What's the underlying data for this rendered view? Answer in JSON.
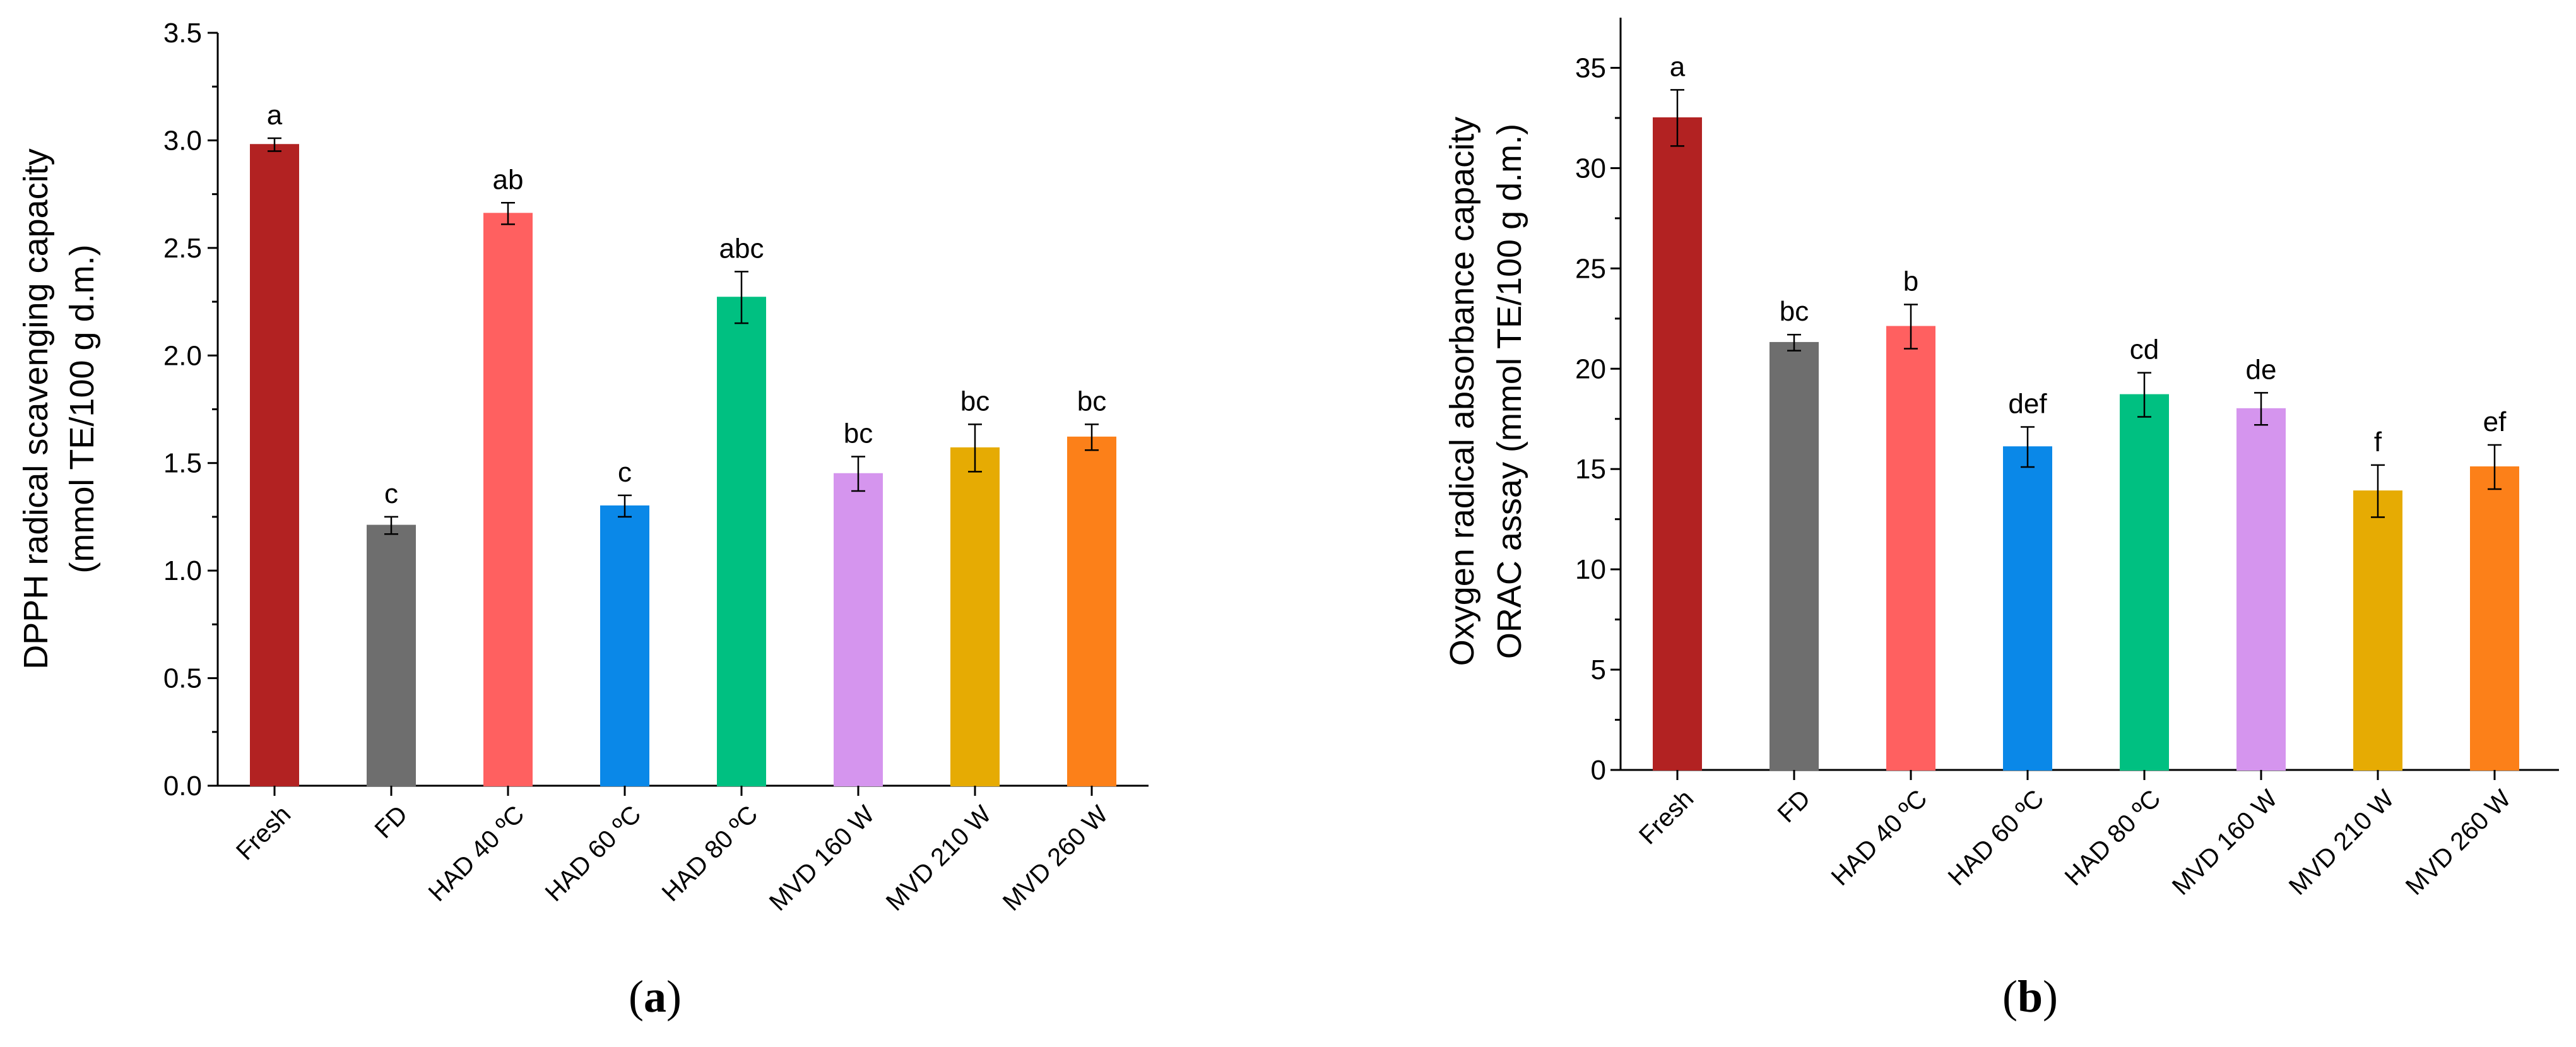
{
  "chart_data": [
    {
      "type": "bar",
      "panel": "a",
      "categories": [
        "Fresh",
        "FD",
        "HAD 40 ºC",
        "HAD 60 ºC",
        "HAD 80 ºC",
        "MVD 160 W",
        "MVD 210 W",
        "MVD 260 W"
      ],
      "values": [
        2.98,
        1.21,
        2.66,
        1.3,
        2.27,
        1.45,
        1.57,
        1.62
      ],
      "errors": [
        0.03,
        0.04,
        0.05,
        0.05,
        0.12,
        0.08,
        0.11,
        0.06
      ],
      "significance": [
        "a",
        "c",
        "ab",
        "c",
        "abc",
        "bc",
        "bc",
        "bc"
      ],
      "colors": [
        "#B22222",
        "#6E6E6E",
        "#FF6060",
        "#0A88E8",
        "#00C081",
        "#D595EE",
        "#E6AB03",
        "#FC8019"
      ],
      "ylabel_line1": "DPPH radical scavenging capacity",
      "ylabel_line2": "(mmol TE/100 g d.m.)",
      "ylim": [
        0,
        3.5
      ],
      "yticks": [
        "0.0",
        "0.5",
        "1.0",
        "1.5",
        "2.0",
        "2.5",
        "3.0",
        "3.5"
      ],
      "ytick_values": [
        0,
        0.5,
        1.0,
        1.5,
        2.0,
        2.5,
        3.0,
        3.5
      ],
      "panel_label": "a"
    },
    {
      "type": "bar",
      "panel": "b",
      "categories": [
        "Fresh",
        "FD",
        "HAD 40 ºC",
        "HAD 60 ºC",
        "HAD 80 ºC",
        "MVD 160 W",
        "MVD 210 W",
        "MVD 260 W"
      ],
      "values": [
        32.5,
        21.3,
        22.1,
        16.1,
        18.7,
        18.0,
        13.9,
        15.1
      ],
      "errors": [
        1.4,
        0.4,
        1.1,
        1.0,
        1.1,
        0.8,
        1.3,
        1.1
      ],
      "significance": [
        "a",
        "bc",
        "b",
        "def",
        "cd",
        "de",
        "f",
        "ef"
      ],
      "colors": [
        "#B22222",
        "#6E6E6E",
        "#FF6060",
        "#0A88E8",
        "#00C081",
        "#D595EE",
        "#E6AB03",
        "#FC8019"
      ],
      "ylabel_line1": "Oxygen radical absorbance capacity",
      "ylabel_line2": "ORAC assay (mmol TE/100 g d.m.)",
      "ylim": [
        0,
        37.5
      ],
      "yticks": [
        "0",
        "5",
        "10",
        "15",
        "20",
        "25",
        "30",
        "35"
      ],
      "ytick_values": [
        0,
        5,
        10,
        15,
        20,
        25,
        30,
        35
      ],
      "panel_label": "b"
    }
  ]
}
